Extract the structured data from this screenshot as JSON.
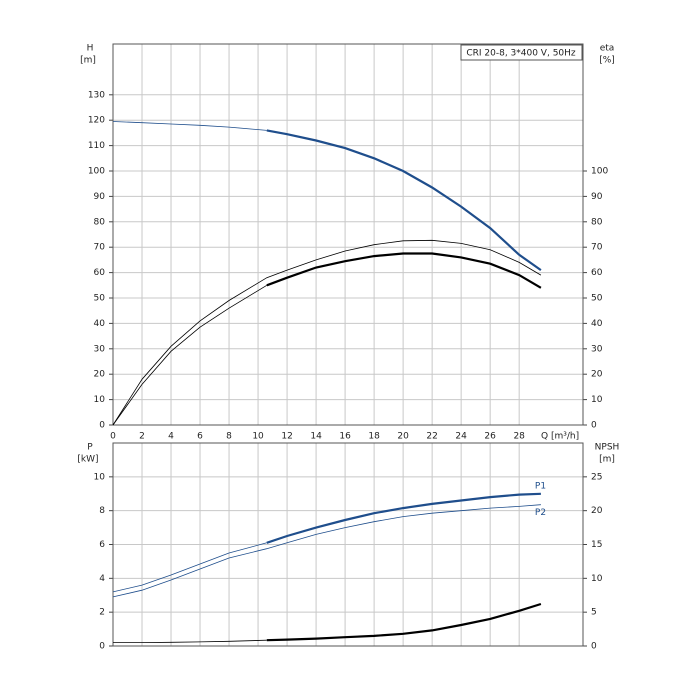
{
  "chart_data": [
    {
      "type": "line",
      "title": "CRI 20-8, 3*400 V, 50Hz",
      "ylabel": "H",
      "yunit": "[m]",
      "y2label": "eta",
      "y2unit": "[%]",
      "xlabel": "Q [m³/h]",
      "xlim": [
        0,
        32.4
      ],
      "xticks": [
        0,
        2,
        4,
        6,
        8,
        10,
        12,
        14,
        16,
        18,
        20,
        22,
        24,
        26,
        28
      ],
      "ylim": [
        0,
        150
      ],
      "yticks": [
        0,
        10,
        20,
        30,
        40,
        50,
        60,
        70,
        80,
        90,
        100,
        110,
        120,
        130
      ],
      "y2lim": [
        0,
        150
      ],
      "y2ticks": [
        0,
        10,
        20,
        30,
        40,
        50,
        60,
        70,
        80,
        90,
        100
      ],
      "grid": true,
      "x": [
        0,
        2,
        4,
        6,
        8,
        10.6,
        12,
        14,
        16,
        18,
        20,
        22,
        24,
        26,
        28,
        29.5
      ],
      "series": [
        {
          "color": "#1f4e8c",
          "width": 0.8,
          "values": [
            119.5,
            119,
            118.5,
            118,
            117.3,
            116,
            null,
            null,
            null,
            null,
            null,
            null,
            null,
            null,
            null,
            null
          ]
        },
        {
          "color": "#1f4e8c",
          "width": 2.2,
          "values": [
            null,
            null,
            null,
            null,
            null,
            116,
            114.5,
            112,
            109,
            105,
            100,
            93.5,
            86,
            77.5,
            67,
            61
          ]
        },
        {
          "color": "#000000",
          "width": 0.8,
          "axis": "y2",
          "values": [
            0,
            18,
            31,
            41,
            49,
            58,
            61,
            65,
            68.5,
            71,
            72.5,
            72.7,
            71.5,
            69,
            64,
            59
          ]
        },
        {
          "color": "#000000",
          "width": 0.8,
          "axis": "y2",
          "values": [
            0,
            16,
            29,
            38.5,
            46,
            55,
            null,
            null,
            null,
            null,
            null,
            null,
            null,
            null,
            null,
            null
          ]
        },
        {
          "color": "#000000",
          "width": 2.2,
          "axis": "y2",
          "values": [
            null,
            null,
            null,
            null,
            null,
            55,
            58,
            62,
            64.5,
            66.5,
            67.5,
            67.5,
            66,
            63.5,
            59,
            54
          ]
        }
      ]
    },
    {
      "type": "line",
      "ylabel": "P",
      "yunit": "[kW]",
      "y2label": "NPSH",
      "y2unit": "[m]",
      "xlim": [
        0,
        32.4
      ],
      "ylim": [
        0,
        12
      ],
      "yticks": [
        0,
        2,
        4,
        6,
        8,
        10
      ],
      "y2lim": [
        0,
        30
      ],
      "y2ticks": [
        0,
        5,
        10,
        15,
        20,
        25
      ],
      "grid": true,
      "x": [
        0,
        2,
        4,
        6,
        8,
        10.6,
        12,
        14,
        16,
        18,
        20,
        22,
        24,
        26,
        28,
        29.5
      ],
      "series": [
        {
          "color": "#1f4e8c",
          "width": 0.8,
          "values": [
            3.2,
            3.6,
            4.2,
            4.85,
            5.5,
            6.1,
            null,
            null,
            null,
            null,
            null,
            null,
            null,
            null,
            null,
            null
          ]
        },
        {
          "name": "P1",
          "color": "#1f4e8c",
          "width": 2.2,
          "values": [
            null,
            null,
            null,
            null,
            null,
            6.1,
            6.5,
            7.0,
            7.45,
            7.85,
            8.15,
            8.4,
            8.6,
            8.8,
            8.95,
            9.0
          ]
        },
        {
          "name": "P2",
          "color": "#1f4e8c",
          "width": 0.8,
          "values": [
            2.9,
            3.3,
            3.9,
            4.55,
            5.2,
            5.75,
            6.1,
            6.6,
            7.0,
            7.35,
            7.65,
            7.85,
            8.0,
            8.15,
            8.25,
            8.35
          ]
        },
        {
          "color": "#000000",
          "width": 0.8,
          "axis": "y2",
          "values": [
            0.5,
            0.5,
            0.55,
            0.6,
            0.7,
            0.85,
            null,
            null,
            null,
            null,
            null,
            null,
            null,
            null,
            null,
            null
          ]
        },
        {
          "color": "#000000",
          "width": 2.2,
          "axis": "y2",
          "values": [
            null,
            null,
            null,
            null,
            null,
            0.85,
            0.95,
            1.1,
            1.3,
            1.5,
            1.8,
            2.3,
            3.1,
            4.0,
            5.2,
            6.2
          ]
        }
      ]
    }
  ]
}
